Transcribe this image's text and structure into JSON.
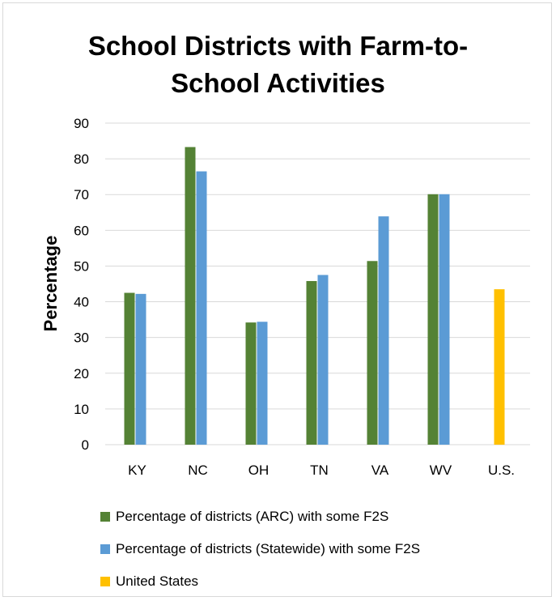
{
  "chart_data": {
    "type": "bar",
    "title": "School Districts with Farm-to-School Activities",
    "title_lines": [
      "School Districts with Farm-to-",
      "School Activities"
    ],
    "xlabel": "",
    "ylabel": "Percentage",
    "ylim": [
      0,
      90
    ],
    "yticks": [
      0,
      10,
      20,
      30,
      40,
      50,
      60,
      70,
      80,
      90
    ],
    "grid": true,
    "legend_position": "bottom",
    "categories": [
      "KY",
      "NC",
      "OH",
      "TN",
      "VA",
      "WV",
      "U.S."
    ],
    "series": [
      {
        "name": "Percentage of districts (ARC) with some F2S",
        "color": "#548235",
        "values": [
          42.5,
          83.3,
          34.2,
          45.8,
          51.4,
          70.1,
          null
        ]
      },
      {
        "name": "Percentage of districts (Statewide) with some F2S",
        "color": "#5b9bd5",
        "values": [
          42.2,
          76.5,
          34.4,
          47.5,
          63.9,
          70.1,
          null
        ]
      },
      {
        "name": "United States",
        "color": "#ffc000",
        "values": [
          null,
          null,
          null,
          null,
          null,
          null,
          43.5
        ]
      }
    ]
  }
}
